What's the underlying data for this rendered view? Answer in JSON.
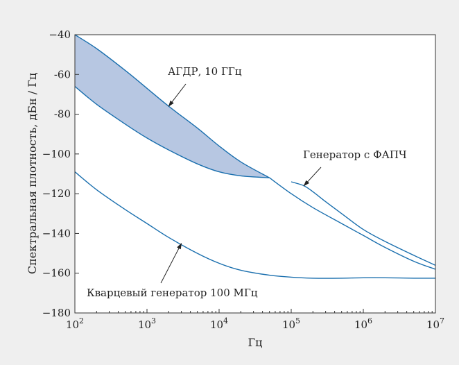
{
  "colors": {
    "background": "#efefef",
    "plot_background": "#ffffff",
    "line": "#1a6fae",
    "fill": "#b7c7e2"
  },
  "chart_data": {
    "type": "line",
    "xlabel": "Гц",
    "ylabel": "Спектральная плотность, дБн / Гц",
    "x_scale": "log",
    "xlim": [
      100,
      10000000
    ],
    "ylim": [
      -180,
      -40
    ],
    "x_ticks": [
      {
        "value": 100,
        "base": "10",
        "exp": "2"
      },
      {
        "value": 1000,
        "base": "10",
        "exp": "3"
      },
      {
        "value": 10000,
        "base": "10",
        "exp": "4"
      },
      {
        "value": 100000,
        "base": "10",
        "exp": "5"
      },
      {
        "value": 1000000,
        "base": "10",
        "exp": "6"
      },
      {
        "value": 10000000,
        "base": "10",
        "exp": "7"
      }
    ],
    "y_ticks": [
      {
        "value": -40,
        "label": "−40"
      },
      {
        "value": -60,
        "label": "-60"
      },
      {
        "value": -80,
        "label": "-80"
      },
      {
        "value": -100,
        "label": "−100"
      },
      {
        "value": -120,
        "label": "−120"
      },
      {
        "value": -140,
        "label": "−140"
      },
      {
        "value": -160,
        "label": "−160"
      },
      {
        "value": -180,
        "label": "−180"
      }
    ],
    "grid": false,
    "band": {
      "label": "АГДР, 10 ГГц",
      "upper": {
        "x": [
          100,
          200,
          500,
          1000,
          2000,
          5000,
          10000,
          20000,
          50000
        ],
        "y": [
          -38,
          -47,
          -58,
          -67,
          -76,
          -87,
          -96,
          -104,
          -112
        ]
      },
      "lower": {
        "x": [
          100,
          200,
          500,
          1000,
          2000,
          5000,
          10000,
          20000,
          50000
        ],
        "y": [
          -66,
          -75,
          -85,
          -92,
          -98,
          -105,
          -109,
          -111,
          -112
        ]
      }
    },
    "series": [
      {
        "name": "Генератор с ФАПЧ",
        "x": [
          100000,
          150000,
          200000,
          300000,
          500000,
          1000000,
          2000000,
          5000000,
          10000000
        ],
        "y": [
          -114,
          -116,
          -119,
          -124,
          -130,
          -138,
          -144,
          -151,
          -156
        ]
      },
      {
        "x": [
          50000,
          100000,
          200000,
          500000,
          1000000,
          2000000,
          5000000,
          10000000
        ],
        "y": [
          -112,
          -120,
          -127,
          -135,
          -141,
          -147,
          -154,
          -158
        ]
      },
      {
        "name": "Кварцевый генератор 100 МГц",
        "x": [
          100,
          200,
          500,
          1000,
          2000,
          5000,
          10000,
          20000,
          50000,
          100000,
          200000,
          500000,
          1000000,
          2000000,
          5000000,
          10000000
        ],
        "y": [
          -109,
          -118,
          -128,
          -135,
          -142,
          -150,
          -155,
          -158.5,
          -161,
          -162,
          -162.5,
          -162.5,
          -162.3,
          -162.3,
          -162.5,
          -162.5
        ]
      }
    ],
    "annotations": [
      {
        "text": "АГДР, 10 ГГц",
        "target": [
          2000,
          -76
        ]
      },
      {
        "text": "Генератор с ФАПЧ",
        "target": [
          150000,
          -116
        ]
      },
      {
        "text": "Кварцевый генератор 100 МГц",
        "target": [
          3000,
          -145
        ]
      }
    ]
  }
}
